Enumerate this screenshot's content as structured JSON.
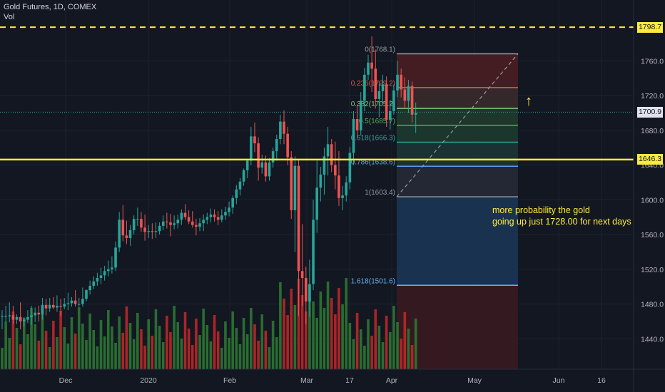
{
  "header": {
    "title": "Gold Futures, 1D, COMEX",
    "vol_label": "Vol"
  },
  "colors": {
    "background": "#131722",
    "grid": "#1e222d",
    "axis_text": "#b2b5be",
    "up": "#26a69a",
    "down": "#ef5350",
    "vol_up": "#2e7d32",
    "vol_down": "#c62828",
    "yellow": "#ffeb3b",
    "last_price_bg": "#e0e3eb"
  },
  "annotations": {
    "note_line1": "more probability the gold",
    "note_line2": "going up just 1728.00 for next days",
    "arrow_icon": "up-arrow",
    "arrow_glyph": "↑"
  },
  "price_tags": {
    "resistance_dashed": "1798.7",
    "last_price": "1700.9",
    "support_solid": "1646.3"
  },
  "chart_data": {
    "type": "candlestick",
    "title": "Gold Futures, 1D, COMEX",
    "y_axis": {
      "ticks": [
        1440,
        1480,
        1520,
        1560,
        1600,
        1640,
        1680,
        1720,
        1760
      ],
      "range": [
        1405,
        1830
      ]
    },
    "x_axis": {
      "tick_labels": [
        "Dec",
        "2020",
        "Feb",
        "Mar",
        "17",
        "Apr",
        "May",
        "Jun",
        "16"
      ]
    },
    "horizontal_lines": [
      {
        "price": 1798.7,
        "style": "dashed",
        "color": "#ffeb3b"
      },
      {
        "price": 1646.3,
        "style": "solid",
        "color": "#ffeb3b"
      },
      {
        "price": 1700.9,
        "style": "dotted",
        "color": "#26a69a"
      }
    ],
    "fibonacci": {
      "levels": [
        {
          "label": "0(1768.1)",
          "price": 1768.1,
          "color": "#9598a1"
        },
        {
          "label": "0.236(1729.2)",
          "price": 1729.2,
          "color": "#ef5350"
        },
        {
          "label": "0.382(1705.2)",
          "price": 1705.2,
          "color": "#81c784"
        },
        {
          "label": "0.5(1685.7)",
          "price": 1685.7,
          "color": "#4caf50"
        },
        {
          "label": "0.618(1666.3)",
          "price": 1666.3,
          "color": "#26a69a"
        },
        {
          "label": "0.786(1638.6)",
          "price": 1638.6,
          "color": "#5b9cf6"
        },
        {
          "label": "1(1603.4)",
          "price": 1603.4,
          "color": "#9598a1"
        },
        {
          "label": "1.618(1501.6)",
          "price": 1501.6,
          "color": "#64b5f6"
        }
      ],
      "bottom_price": 1400
    },
    "candles": [
      [
        1466,
        1473,
        1451,
        1466
      ],
      [
        1466,
        1478,
        1460,
        1466
      ],
      [
        1466,
        1482,
        1459,
        1467
      ],
      [
        1467,
        1478,
        1457,
        1462
      ],
      [
        1462,
        1468,
        1457,
        1465
      ],
      [
        1465,
        1482,
        1451,
        1460
      ],
      [
        1460,
        1465,
        1454,
        1462
      ],
      [
        1462,
        1473,
        1458,
        1465
      ],
      [
        1465,
        1478,
        1456,
        1467
      ],
      [
        1467,
        1476,
        1459,
        1470
      ],
      [
        1470,
        1478,
        1460,
        1468
      ],
      [
        1468,
        1487,
        1462,
        1479
      ],
      [
        1479,
        1486,
        1467,
        1475
      ],
      [
        1475,
        1487,
        1471,
        1479
      ],
      [
        1479,
        1488,
        1474,
        1476
      ],
      [
        1476,
        1490,
        1471,
        1478
      ],
      [
        1478,
        1486,
        1466,
        1477
      ],
      [
        1477,
        1487,
        1474,
        1480
      ],
      [
        1480,
        1493,
        1473,
        1481
      ],
      [
        1481,
        1488,
        1477,
        1484
      ],
      [
        1484,
        1496,
        1477,
        1480
      ],
      [
        1480,
        1487,
        1477,
        1480
      ],
      [
        1480,
        1499,
        1477,
        1486
      ],
      [
        1486,
        1497,
        1483,
        1496
      ],
      [
        1496,
        1507,
        1491,
        1501
      ],
      [
        1501,
        1512,
        1497,
        1506
      ],
      [
        1506,
        1516,
        1501,
        1510
      ],
      [
        1510,
        1522,
        1503,
        1513
      ],
      [
        1513,
        1524,
        1507,
        1518
      ],
      [
        1518,
        1530,
        1512,
        1520
      ],
      [
        1520,
        1535,
        1515,
        1522
      ],
      [
        1522,
        1552,
        1518,
        1545
      ],
      [
        1545,
        1586,
        1540,
        1577
      ],
      [
        1577,
        1594,
        1552,
        1559
      ],
      [
        1559,
        1576,
        1549,
        1556
      ],
      [
        1556,
        1571,
        1547,
        1565
      ],
      [
        1565,
        1582,
        1560,
        1578
      ],
      [
        1578,
        1591,
        1570,
        1578
      ],
      [
        1578,
        1586,
        1563,
        1568
      ],
      [
        1568,
        1583,
        1553,
        1563
      ],
      [
        1563,
        1571,
        1556,
        1564
      ],
      [
        1564,
        1573,
        1555,
        1563
      ],
      [
        1563,
        1574,
        1556,
        1564
      ],
      [
        1564,
        1574,
        1560,
        1570
      ],
      [
        1570,
        1582,
        1565,
        1575
      ],
      [
        1575,
        1585,
        1567,
        1574
      ],
      [
        1574,
        1584,
        1558,
        1571
      ],
      [
        1571,
        1582,
        1566,
        1573
      ],
      [
        1573,
        1583,
        1567,
        1577
      ],
      [
        1577,
        1589,
        1571,
        1585
      ],
      [
        1585,
        1595,
        1577,
        1580
      ],
      [
        1580,
        1588,
        1572,
        1575
      ],
      [
        1575,
        1587,
        1568,
        1571
      ],
      [
        1571,
        1578,
        1559,
        1569
      ],
      [
        1569,
        1579,
        1564,
        1573
      ],
      [
        1573,
        1583,
        1564,
        1577
      ],
      [
        1577,
        1585,
        1572,
        1580
      ],
      [
        1580,
        1590,
        1574,
        1583
      ],
      [
        1583,
        1589,
        1575,
        1580
      ],
      [
        1580,
        1587,
        1571,
        1577
      ],
      [
        1577,
        1589,
        1574,
        1582
      ],
      [
        1582,
        1592,
        1577,
        1586
      ],
      [
        1586,
        1598,
        1581,
        1591
      ],
      [
        1591,
        1605,
        1584,
        1602
      ],
      [
        1602,
        1617,
        1595,
        1612
      ],
      [
        1612,
        1625,
        1605,
        1621
      ],
      [
        1621,
        1636,
        1616,
        1634
      ],
      [
        1634,
        1647,
        1625,
        1645
      ],
      [
        1645,
        1684,
        1640,
        1673
      ],
      [
        1673,
        1689,
        1655,
        1665
      ],
      [
        1665,
        1672,
        1622,
        1637
      ],
      [
        1637,
        1652,
        1630,
        1643
      ],
      [
        1643,
        1651,
        1621,
        1627
      ],
      [
        1627,
        1648,
        1622,
        1643
      ],
      [
        1643,
        1660,
        1637,
        1656
      ],
      [
        1656,
        1675,
        1645,
        1670
      ],
      [
        1670,
        1698,
        1664,
        1690
      ],
      [
        1690,
        1703,
        1664,
        1676
      ],
      [
        1676,
        1684,
        1640,
        1649
      ],
      [
        1649,
        1656,
        1578,
        1588
      ],
      [
        1588,
        1650,
        1540,
        1639
      ],
      [
        1639,
        1646,
        1466,
        1518
      ],
      [
        1518,
        1572,
        1478,
        1510
      ],
      [
        1510,
        1523,
        1457,
        1483
      ],
      [
        1483,
        1531,
        1465,
        1503
      ],
      [
        1503,
        1600,
        1496,
        1577
      ],
      [
        1577,
        1645,
        1562,
        1614
      ],
      [
        1614,
        1638,
        1598,
        1629
      ],
      [
        1629,
        1660,
        1606,
        1650
      ],
      [
        1650,
        1684,
        1628,
        1664
      ],
      [
        1664,
        1670,
        1632,
        1640
      ],
      [
        1640,
        1667,
        1612,
        1628
      ],
      [
        1628,
        1656,
        1593,
        1602
      ],
      [
        1602,
        1616,
        1588,
        1605
      ],
      [
        1605,
        1627,
        1598,
        1620
      ],
      [
        1620,
        1661,
        1612,
        1654
      ],
      [
        1654,
        1702,
        1640,
        1693
      ],
      [
        1693,
        1710,
        1672,
        1680
      ],
      [
        1680,
        1724,
        1674,
        1714
      ],
      [
        1714,
        1752,
        1702,
        1744
      ],
      [
        1744,
        1767,
        1738,
        1758
      ],
      [
        1758,
        1788,
        1724,
        1751
      ],
      [
        1751,
        1773,
        1705,
        1716
      ],
      [
        1716,
        1736,
        1695,
        1725
      ],
      [
        1725,
        1744,
        1711,
        1733
      ],
      [
        1733,
        1742,
        1684,
        1692
      ],
      [
        1692,
        1715,
        1681,
        1702
      ],
      [
        1702,
        1733,
        1698,
        1726
      ],
      [
        1726,
        1760,
        1718,
        1744
      ],
      [
        1744,
        1751,
        1718,
        1727
      ],
      [
        1727,
        1741,
        1705,
        1714
      ],
      [
        1714,
        1738,
        1700,
        1731
      ],
      [
        1731,
        1736,
        1689,
        1698
      ],
      [
        1698,
        1712,
        1677,
        1700
      ]
    ],
    "volume_direction": "up/down colored bars aligned with candles"
  }
}
